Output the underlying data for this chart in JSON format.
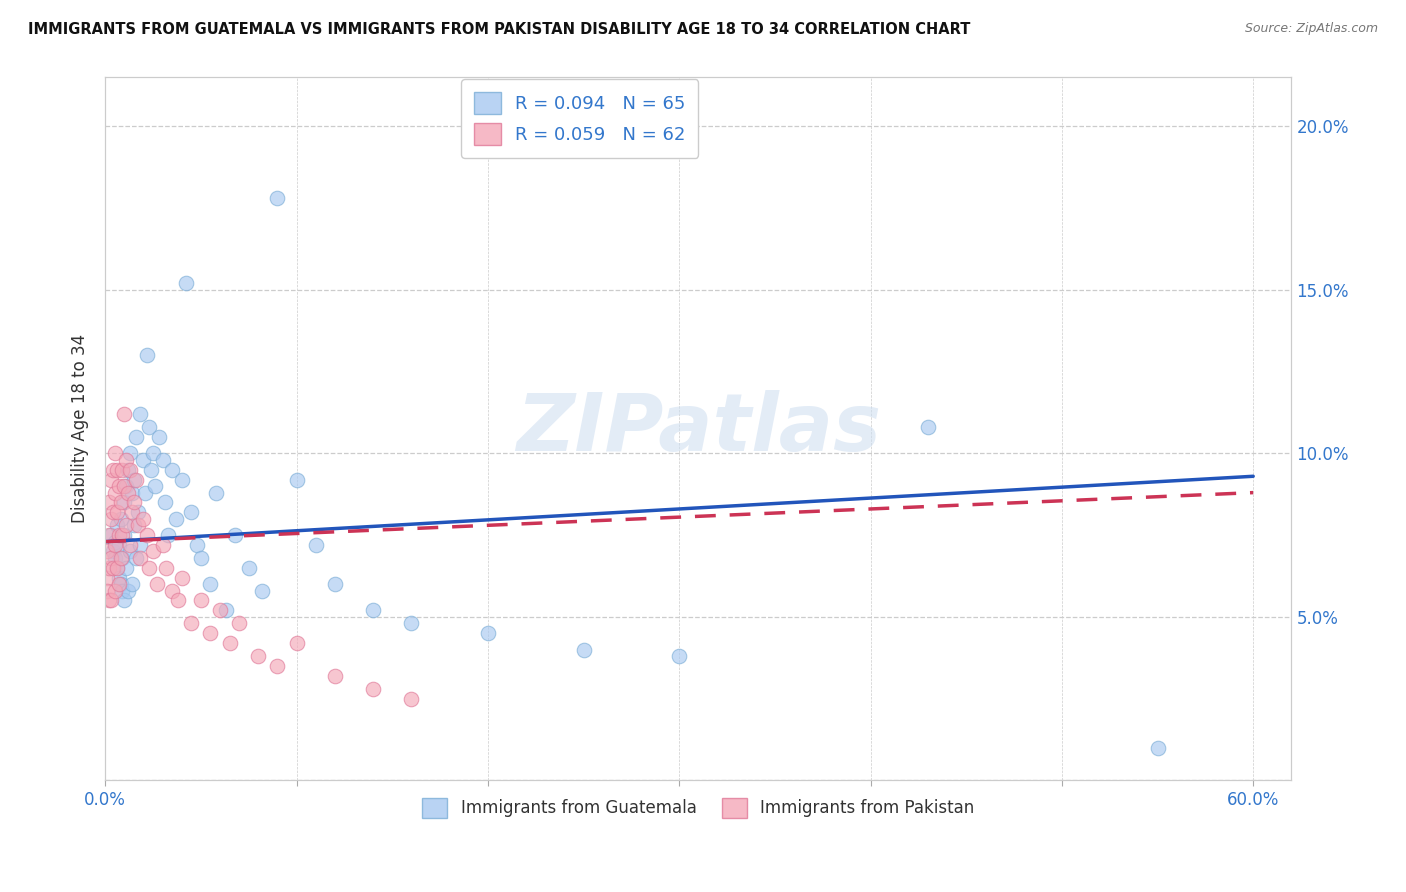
{
  "title": "IMMIGRANTS FROM GUATEMALA VS IMMIGRANTS FROM PAKISTAN DISABILITY AGE 18 TO 34 CORRELATION CHART",
  "source": "Source: ZipAtlas.com",
  "ylabel": "Disability Age 18 to 34",
  "xlim": [
    0.0,
    0.62
  ],
  "ylim": [
    0.0,
    0.215
  ],
  "xticks": [
    0.0,
    0.1,
    0.2,
    0.3,
    0.4,
    0.5,
    0.6
  ],
  "xticklabels": [
    "0.0%",
    "",
    "",
    "",
    "",
    "",
    "60.0%"
  ],
  "yticks": [
    0.0,
    0.05,
    0.1,
    0.15,
    0.2
  ],
  "yticklabels_right": [
    "",
    "5.0%",
    "10.0%",
    "15.0%",
    "20.0%"
  ],
  "watermark_text": "ZIPatlas",
  "legend1_label": "R = 0.094   N = 65",
  "legend2_label": "R = 0.059   N = 62",
  "series1_color": "#a8c8f0",
  "series2_color": "#f4a8b8",
  "series1_edge": "#7badd6",
  "series2_edge": "#e07898",
  "series1_line_color": "#2255bb",
  "series2_line_color": "#cc3355",
  "bottom_label1": "Immigrants from Guatemala",
  "bottom_label2": "Immigrants from Pakistan",
  "guatemala_x": [
    0.003,
    0.004,
    0.005,
    0.005,
    0.006,
    0.006,
    0.007,
    0.007,
    0.008,
    0.008,
    0.009,
    0.009,
    0.01,
    0.01,
    0.01,
    0.011,
    0.011,
    0.012,
    0.012,
    0.013,
    0.013,
    0.014,
    0.014,
    0.015,
    0.015,
    0.016,
    0.016,
    0.017,
    0.018,
    0.018,
    0.02,
    0.021,
    0.022,
    0.023,
    0.024,
    0.025,
    0.026,
    0.028,
    0.03,
    0.031,
    0.033,
    0.035,
    0.037,
    0.04,
    0.042,
    0.045,
    0.048,
    0.05,
    0.055,
    0.058,
    0.063,
    0.068,
    0.075,
    0.082,
    0.09,
    0.1,
    0.11,
    0.12,
    0.14,
    0.16,
    0.2,
    0.25,
    0.3,
    0.43,
    0.55
  ],
  "guatemala_y": [
    0.075,
    0.07,
    0.068,
    0.073,
    0.065,
    0.078,
    0.072,
    0.062,
    0.08,
    0.06,
    0.068,
    0.058,
    0.085,
    0.075,
    0.055,
    0.09,
    0.065,
    0.095,
    0.058,
    0.1,
    0.07,
    0.088,
    0.06,
    0.092,
    0.078,
    0.105,
    0.068,
    0.082,
    0.112,
    0.072,
    0.098,
    0.088,
    0.13,
    0.108,
    0.095,
    0.1,
    0.09,
    0.105,
    0.098,
    0.085,
    0.075,
    0.095,
    0.08,
    0.092,
    0.152,
    0.082,
    0.072,
    0.068,
    0.06,
    0.088,
    0.052,
    0.075,
    0.065,
    0.058,
    0.178,
    0.092,
    0.072,
    0.06,
    0.052,
    0.048,
    0.045,
    0.04,
    0.038,
    0.108,
    0.01
  ],
  "pakistan_x": [
    0.001,
    0.001,
    0.001,
    0.002,
    0.002,
    0.002,
    0.002,
    0.003,
    0.003,
    0.003,
    0.003,
    0.004,
    0.004,
    0.004,
    0.005,
    0.005,
    0.005,
    0.005,
    0.006,
    0.006,
    0.006,
    0.007,
    0.007,
    0.007,
    0.008,
    0.008,
    0.009,
    0.009,
    0.01,
    0.01,
    0.011,
    0.011,
    0.012,
    0.013,
    0.013,
    0.014,
    0.015,
    0.016,
    0.017,
    0.018,
    0.02,
    0.022,
    0.023,
    0.025,
    0.027,
    0.03,
    0.032,
    0.035,
    0.038,
    0.04,
    0.045,
    0.05,
    0.055,
    0.06,
    0.065,
    0.07,
    0.08,
    0.09,
    0.1,
    0.12,
    0.14,
    0.16
  ],
  "pakistan_y": [
    0.07,
    0.062,
    0.058,
    0.085,
    0.075,
    0.065,
    0.055,
    0.092,
    0.08,
    0.068,
    0.055,
    0.095,
    0.082,
    0.065,
    0.1,
    0.088,
    0.072,
    0.058,
    0.095,
    0.082,
    0.065,
    0.09,
    0.075,
    0.06,
    0.085,
    0.068,
    0.095,
    0.075,
    0.112,
    0.09,
    0.098,
    0.078,
    0.088,
    0.095,
    0.072,
    0.082,
    0.085,
    0.092,
    0.078,
    0.068,
    0.08,
    0.075,
    0.065,
    0.07,
    0.06,
    0.072,
    0.065,
    0.058,
    0.055,
    0.062,
    0.048,
    0.055,
    0.045,
    0.052,
    0.042,
    0.048,
    0.038,
    0.035,
    0.042,
    0.032,
    0.028,
    0.025
  ],
  "trend1_x": [
    0.0,
    0.6
  ],
  "trend1_y": [
    0.073,
    0.093
  ],
  "trend2_x": [
    0.0,
    0.6
  ],
  "trend2_y": [
    0.073,
    0.088
  ]
}
